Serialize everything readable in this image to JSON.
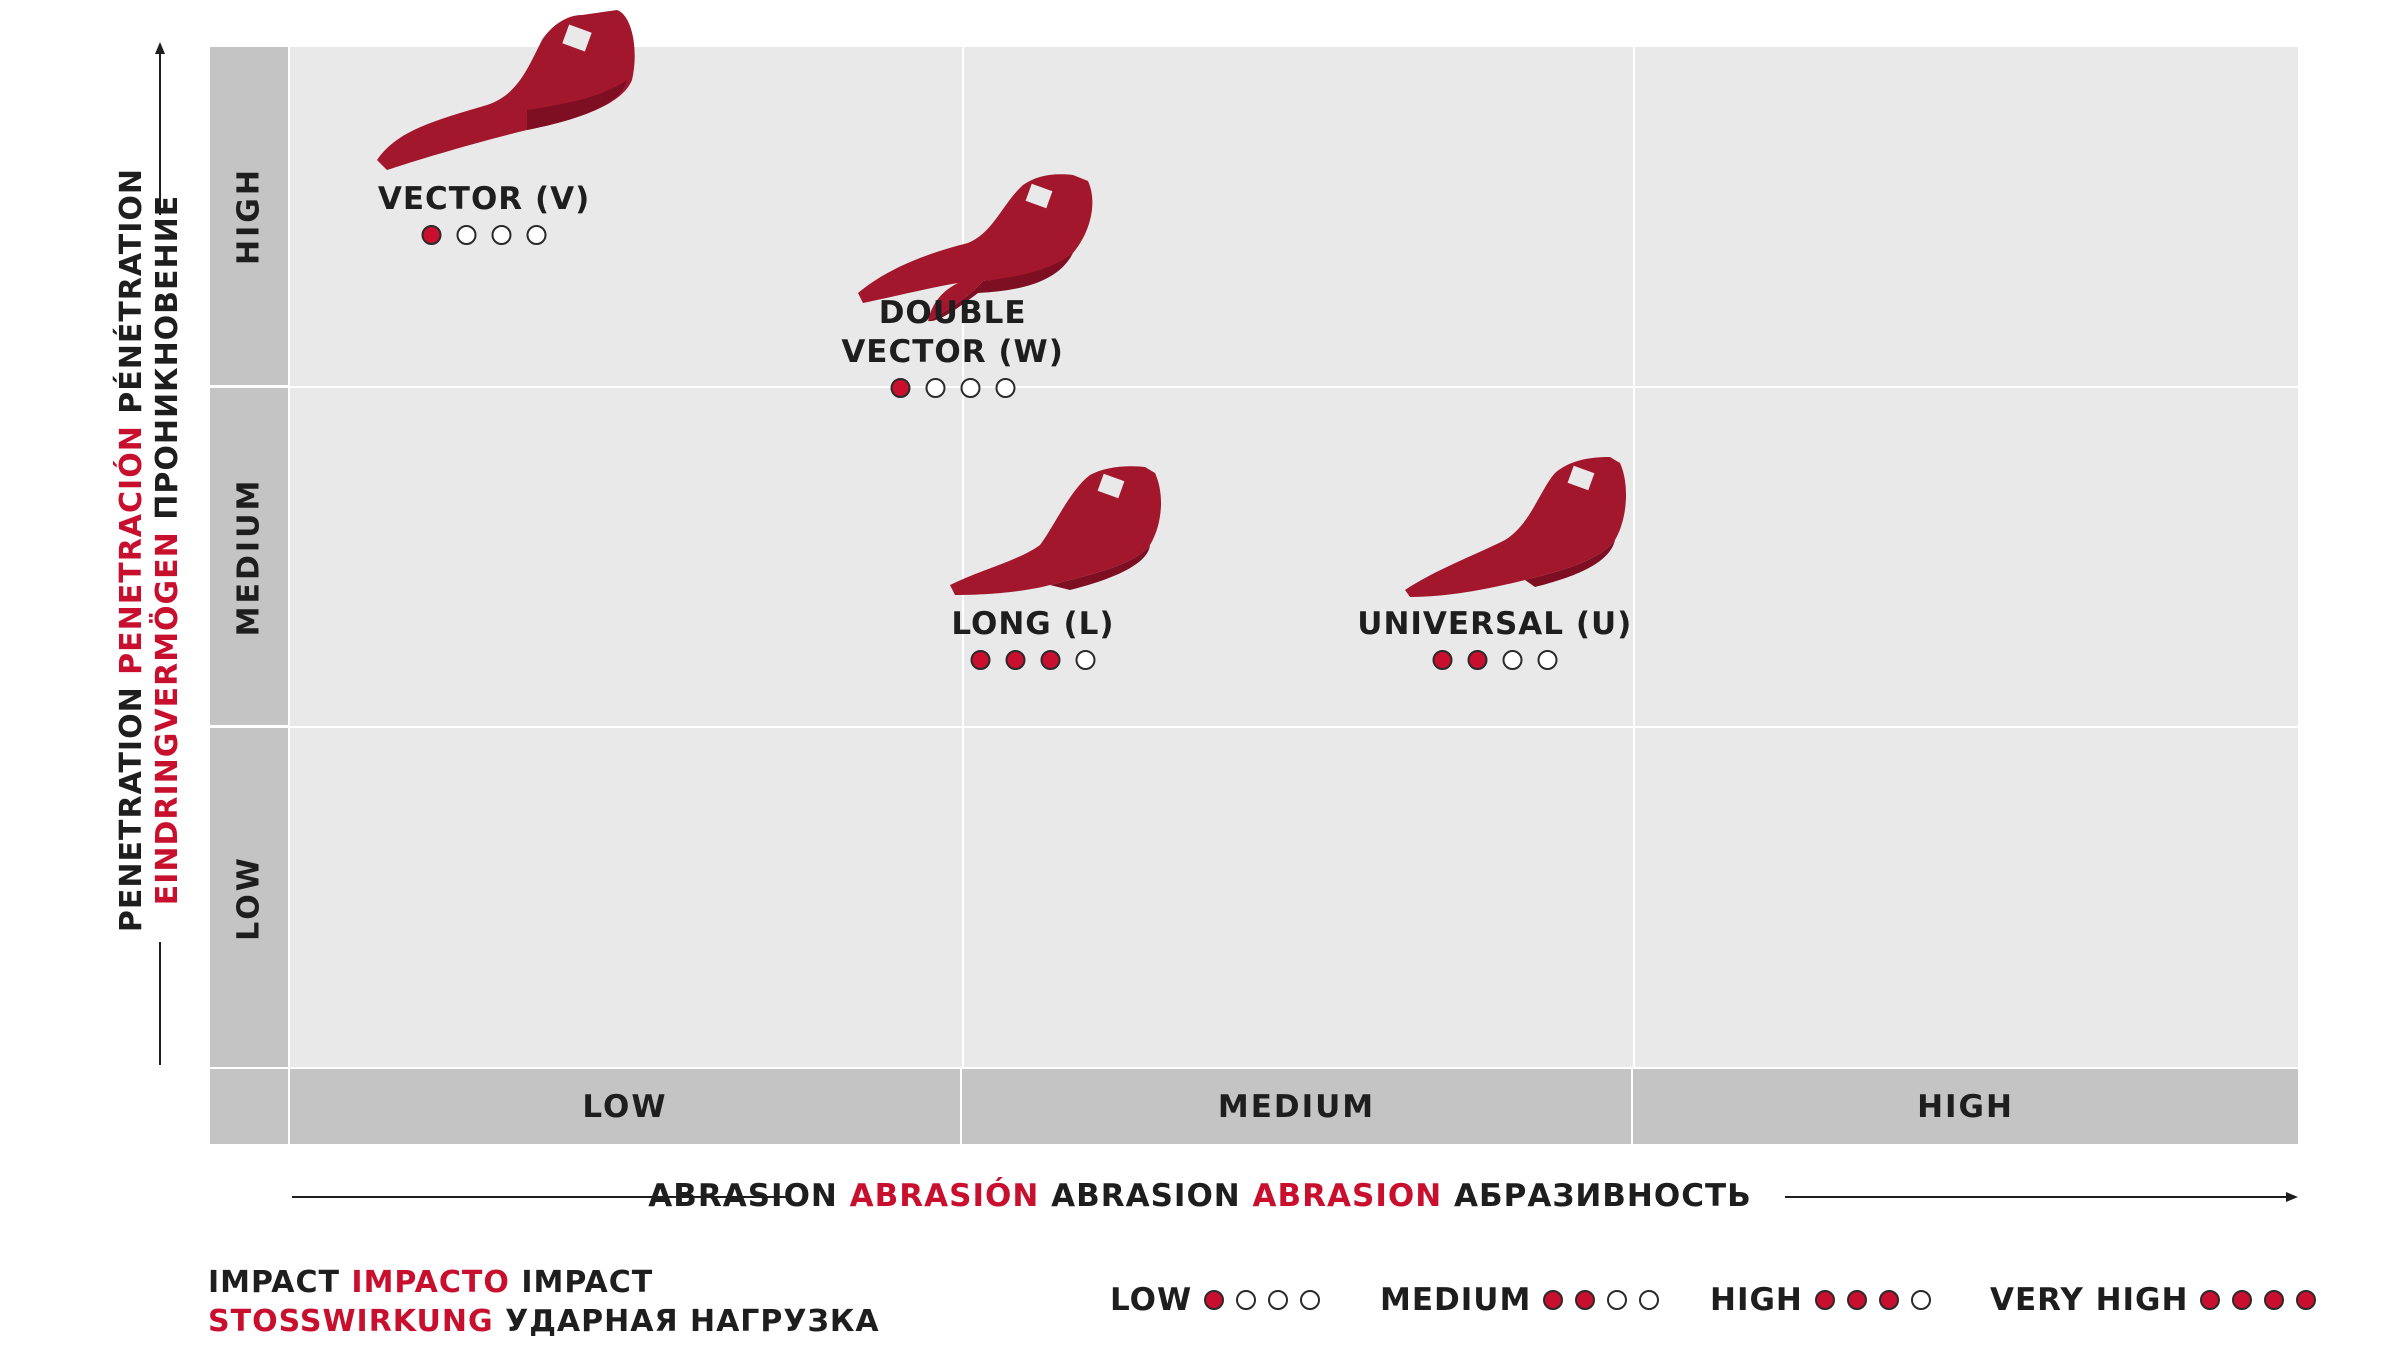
{
  "colors": {
    "accent": "#c8102e",
    "plot_bg": "#e9e9e9",
    "band": "#c4c4c4",
    "text": "#1e1e1e"
  },
  "y_axis": {
    "title_parts": [
      {
        "text": "PENETRATION ",
        "accent": false
      },
      {
        "text": "PENETRACIÓN ",
        "accent": true
      },
      {
        "text": "PÉNÉTRATION",
        "accent": false
      }
    ],
    "title_parts_2": [
      {
        "text": "EINDRINGVERMÖGEN ",
        "accent": true
      },
      {
        "text": "ПРОНИКНОВЕНИЕ",
        "accent": false
      }
    ],
    "levels": [
      "LOW",
      "MEDIUM",
      "HIGH"
    ]
  },
  "x_axis": {
    "title_parts": [
      {
        "text": "ABRASION ",
        "accent": false
      },
      {
        "text": "ABRASIÓN ",
        "accent": true
      },
      {
        "text": "ABRASION ",
        "accent": false
      },
      {
        "text": "ABRASION ",
        "accent": true
      },
      {
        "text": "АБРАЗИВНОСТЬ",
        "accent": false
      }
    ],
    "levels": [
      "LOW",
      "MEDIUM",
      "HIGH"
    ]
  },
  "chart_data": {
    "type": "scatter",
    "x_levels": [
      "LOW",
      "MEDIUM",
      "HIGH"
    ],
    "y_levels": [
      "LOW",
      "MEDIUM",
      "HIGH"
    ],
    "points": [
      {
        "name": "VECTOR (V)",
        "lines": [
          "VECTOR (V)"
        ],
        "x": 0.29,
        "y": 2.55,
        "impact": 1,
        "shape": "vector"
      },
      {
        "name": "DOUBLE VECTOR (W)",
        "lines": [
          "DOUBLE",
          "VECTOR (W)"
        ],
        "x": 0.99,
        "y": 2.1,
        "impact": 1,
        "shape": "double"
      },
      {
        "name": "LONG (L)",
        "lines": [
          "LONG (L)"
        ],
        "x": 1.11,
        "y": 1.3,
        "impact": 3,
        "shape": "long"
      },
      {
        "name": "UNIVERSAL (U)",
        "lines": [
          "UNIVERSAL (U)"
        ],
        "x": 1.8,
        "y": 1.3,
        "impact": 2,
        "shape": "universal"
      }
    ],
    "impact_scale_max": 4
  },
  "impact_legend": {
    "title_line1": [
      {
        "text": "IMPACT ",
        "accent": false
      },
      {
        "text": "IMPACTO ",
        "accent": true
      },
      {
        "text": "IMPACT",
        "accent": false
      }
    ],
    "title_line2": [
      {
        "text": "STOSSWIRKUNG ",
        "accent": true
      },
      {
        "text": "УДАРНАЯ НАГРУЗКА",
        "accent": false
      }
    ],
    "items": [
      {
        "label": "LOW",
        "level": 1
      },
      {
        "label": "MEDIUM",
        "level": 2
      },
      {
        "label": "HIGH",
        "level": 3
      },
      {
        "label": "VERY HIGH",
        "level": 4
      }
    ]
  }
}
